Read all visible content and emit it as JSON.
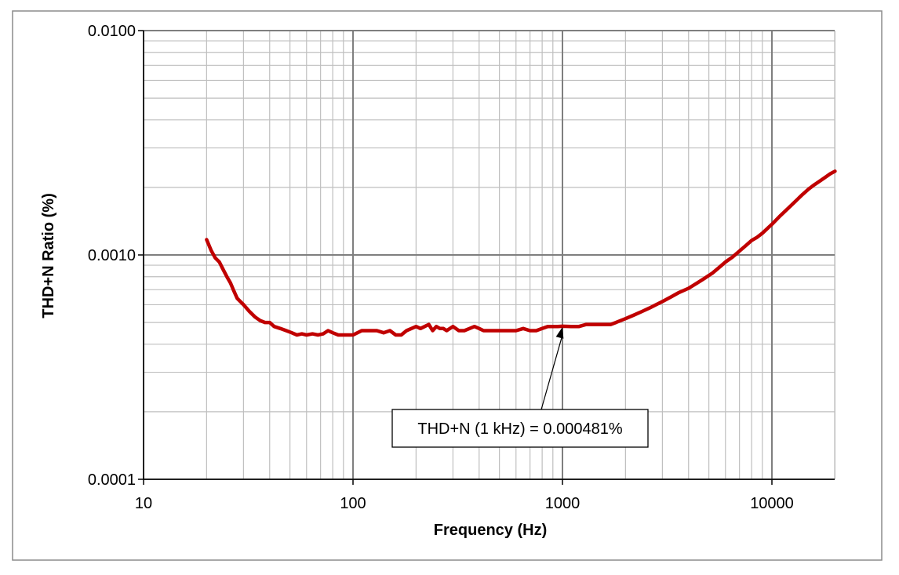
{
  "chart_data": {
    "type": "line",
    "xlabel": "Frequency (Hz)",
    "ylabel": "THD+N Ratio (%)",
    "x_scale": "log",
    "y_scale": "log",
    "xlim": [
      10,
      20000
    ],
    "ylim": [
      0.0001,
      0.01
    ],
    "x_ticks": [
      "10",
      "100",
      "1000",
      "10000"
    ],
    "y_ticks": [
      "0.0001",
      "0.0010",
      "0.0100"
    ],
    "grid": true,
    "line_color": "#c00000",
    "annotation": {
      "text": "THD+N (1 kHz) = 0.000481%",
      "x": 1000,
      "y": 0.000481
    },
    "series": [
      {
        "x": [
          20,
          21,
          22,
          23,
          24,
          25,
          26,
          27,
          28,
          30,
          32,
          34,
          36,
          38,
          40,
          42,
          45,
          48,
          51,
          54,
          57,
          60,
          64,
          68,
          72,
          76,
          80,
          85,
          90,
          95,
          100,
          110,
          120,
          130,
          140,
          150,
          160,
          170,
          180,
          190,
          200,
          210,
          220,
          230,
          240,
          250,
          260,
          270,
          280,
          290,
          300,
          320,
          340,
          360,
          380,
          400,
          420,
          450,
          480,
          510,
          550,
          600,
          650,
          700,
          750,
          800,
          850,
          900,
          950,
          1000,
          1100,
          1200,
          1300,
          1400,
          1500,
          1600,
          1700,
          1800,
          1900,
          2000,
          2200,
          2400,
          2600,
          2800,
          3000,
          3300,
          3600,
          4000,
          4400,
          4800,
          5200,
          5600,
          6000,
          6500,
          7000,
          7500,
          8000,
          8500,
          9000,
          10000,
          11000,
          12000,
          13000,
          14000,
          15000,
          16000,
          17000,
          18000,
          19000,
          20000
        ],
        "y": [
          0.00117,
          0.00105,
          0.00097,
          0.00093,
          0.00086,
          0.0008,
          0.00075,
          0.00069,
          0.00064,
          0.0006,
          0.00056,
          0.00053,
          0.00051,
          0.0005,
          0.0005,
          0.00048,
          0.00047,
          0.00046,
          0.00045,
          0.00044,
          0.000445,
          0.00044,
          0.000445,
          0.00044,
          0.000445,
          0.00046,
          0.00045,
          0.00044,
          0.00044,
          0.00044,
          0.00044,
          0.00046,
          0.00046,
          0.00046,
          0.00045,
          0.00046,
          0.00044,
          0.00044,
          0.00046,
          0.00047,
          0.00048,
          0.00047,
          0.00048,
          0.00049,
          0.00046,
          0.00048,
          0.00047,
          0.00047,
          0.00046,
          0.00047,
          0.00048,
          0.00046,
          0.00046,
          0.00047,
          0.00048,
          0.00047,
          0.00046,
          0.00046,
          0.00046,
          0.00046,
          0.00046,
          0.00046,
          0.00047,
          0.00046,
          0.00046,
          0.00047,
          0.00048,
          0.00048,
          0.00048,
          0.000481,
          0.00048,
          0.00048,
          0.00049,
          0.00049,
          0.00049,
          0.00049,
          0.00049,
          0.0005,
          0.00051,
          0.00052,
          0.00054,
          0.00056,
          0.00058,
          0.0006,
          0.00062,
          0.00065,
          0.00068,
          0.00071,
          0.00075,
          0.00079,
          0.00083,
          0.00088,
          0.00093,
          0.00098,
          0.00104,
          0.0011,
          0.00116,
          0.0012,
          0.00125,
          0.00137,
          0.0015,
          0.00162,
          0.00174,
          0.00186,
          0.00197,
          0.00206,
          0.00214,
          0.00222,
          0.0023,
          0.00236
        ]
      }
    ]
  }
}
